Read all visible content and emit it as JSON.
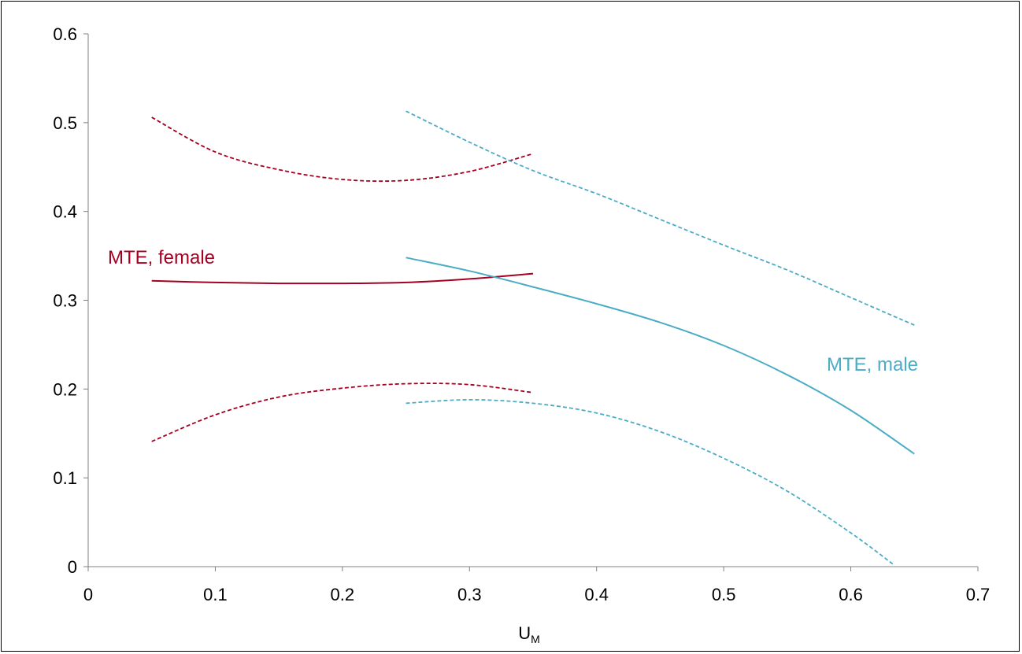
{
  "chart_data": {
    "type": "line",
    "title": "",
    "xlabel": "U",
    "xlabel_subscript": "M",
    "ylabel": "",
    "xlim": [
      0,
      0.7
    ],
    "ylim": [
      0,
      0.6
    ],
    "x_ticks": [
      "0",
      "0.1",
      "0.2",
      "0.3",
      "0.4",
      "0.5",
      "0.6",
      "0.7"
    ],
    "y_ticks": [
      "0",
      "0.1",
      "0.2",
      "0.3",
      "0.4",
      "0.5",
      "0.6"
    ],
    "grid": false,
    "colors": {
      "female": "#a50021",
      "male": "#4bacc6",
      "axis": "#808080"
    },
    "labels": [
      {
        "text": "MTE, female",
        "series": "female"
      },
      {
        "text": "MTE, male",
        "series": "male"
      }
    ],
    "series": [
      {
        "group": "female",
        "style": "solid",
        "x": [
          0.05,
          0.1,
          0.15,
          0.2,
          0.25,
          0.3,
          0.35
        ],
        "y": [
          0.322,
          0.32,
          0.319,
          0.319,
          0.32,
          0.324,
          0.33
        ]
      },
      {
        "group": "female",
        "style": "dashed",
        "x": [
          0.05,
          0.1,
          0.15,
          0.2,
          0.25,
          0.3,
          0.35
        ],
        "y": [
          0.506,
          0.467,
          0.447,
          0.436,
          0.435,
          0.445,
          0.465
        ]
      },
      {
        "group": "female",
        "style": "dashed",
        "x": [
          0.05,
          0.1,
          0.15,
          0.2,
          0.25,
          0.3,
          0.35
        ],
        "y": [
          0.141,
          0.171,
          0.191,
          0.201,
          0.206,
          0.205,
          0.196
        ]
      },
      {
        "group": "male",
        "style": "solid",
        "x": [
          0.25,
          0.3,
          0.35,
          0.4,
          0.45,
          0.5,
          0.55,
          0.6,
          0.65
        ],
        "y": [
          0.348,
          0.333,
          0.315,
          0.296,
          0.275,
          0.249,
          0.216,
          0.176,
          0.127
        ]
      },
      {
        "group": "male",
        "style": "dashed",
        "x": [
          0.25,
          0.3,
          0.35,
          0.4,
          0.45,
          0.5,
          0.55,
          0.6,
          0.65
        ],
        "y": [
          0.513,
          0.478,
          0.446,
          0.42,
          0.391,
          0.362,
          0.334,
          0.303,
          0.272
        ]
      },
      {
        "group": "male",
        "style": "dashed",
        "x": [
          0.25,
          0.3,
          0.35,
          0.4,
          0.45,
          0.5,
          0.55,
          0.6,
          0.633
        ],
        "y": [
          0.184,
          0.188,
          0.184,
          0.173,
          0.152,
          0.122,
          0.085,
          0.038,
          0.003
        ]
      }
    ]
  }
}
